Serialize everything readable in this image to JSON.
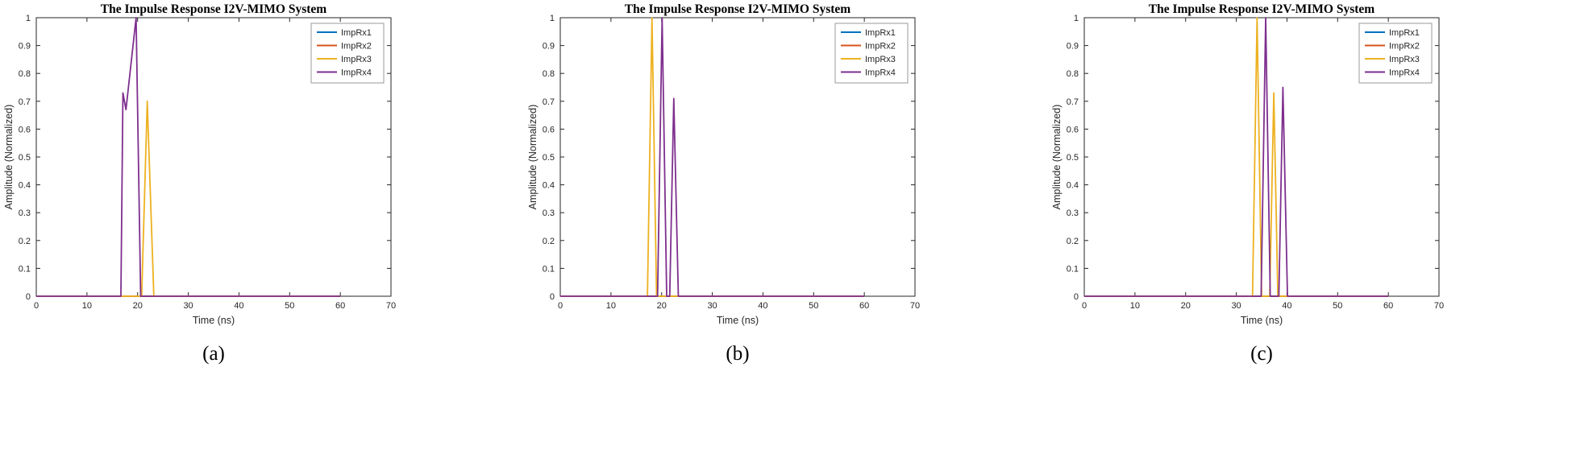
{
  "figure": {
    "title": "The Impulse Response I2V-MIMO System",
    "xlabel": "Time (ns)",
    "ylabel": "Amplitude (Normalized)"
  },
  "colors": {
    "ImpRx1": "#0072BD",
    "ImpRx2": "#D95319",
    "ImpRx3": "#EDB120",
    "ImpRx4": "#7E2F8E",
    "axis": "#262626",
    "legend_border": "#999999"
  },
  "chart_data": [
    {
      "type": "line",
      "title": "The Impulse Response I2V-MIMO System",
      "xlabel": "Time (ns)",
      "ylabel": "Amplitude (Normalized)",
      "sublabel": "(a)",
      "xlim": [
        0,
        70
      ],
      "ylim": [
        0,
        1
      ],
      "xticks": [
        0,
        10,
        20,
        30,
        40,
        50,
        60,
        70
      ],
      "yticks": [
        0,
        0.1,
        0.2,
        0.3,
        0.4,
        0.5,
        0.6,
        0.7,
        0.8,
        0.9,
        1
      ],
      "grid": false,
      "legend_position": "top-right",
      "series": [
        {
          "name": "ImpRx1",
          "color": "#0072BD",
          "points": [
            [
              0,
              0
            ],
            [
              60,
              0
            ]
          ]
        },
        {
          "name": "ImpRx2",
          "color": "#D95319",
          "points": [
            [
              0,
              0
            ],
            [
              60,
              0
            ]
          ]
        },
        {
          "name": "ImpRx3",
          "color": "#EDB120",
          "points": [
            [
              0,
              0
            ],
            [
              20.8,
              0
            ],
            [
              21.9,
              0.7
            ],
            [
              23.2,
              0
            ],
            [
              60,
              0
            ]
          ]
        },
        {
          "name": "ImpRx4",
          "color": "#7E2F8E",
          "points": [
            [
              0,
              0
            ],
            [
              16.7,
              0
            ],
            [
              17.1,
              0.73
            ],
            [
              17.7,
              0.67
            ],
            [
              19.7,
              1
            ],
            [
              20.6,
              0
            ],
            [
              60,
              0
            ]
          ]
        }
      ]
    },
    {
      "type": "line",
      "title": "The Impulse Response I2V-MIMO System",
      "xlabel": "Time (ns)",
      "ylabel": "Amplitude (Normalized)",
      "sublabel": "(b)",
      "xlim": [
        0,
        70
      ],
      "ylim": [
        0,
        1
      ],
      "xticks": [
        0,
        10,
        20,
        30,
        40,
        50,
        60,
        70
      ],
      "yticks": [
        0,
        0.1,
        0.2,
        0.3,
        0.4,
        0.5,
        0.6,
        0.7,
        0.8,
        0.9,
        1
      ],
      "grid": false,
      "legend_position": "top-right",
      "series": [
        {
          "name": "ImpRx1",
          "color": "#0072BD",
          "points": [
            [
              0,
              0
            ],
            [
              60,
              0
            ]
          ]
        },
        {
          "name": "ImpRx2",
          "color": "#D95319",
          "points": [
            [
              0,
              0
            ],
            [
              60,
              0
            ]
          ]
        },
        {
          "name": "ImpRx3",
          "color": "#EDB120",
          "points": [
            [
              0,
              0
            ],
            [
              17.2,
              0
            ],
            [
              18.1,
              1
            ],
            [
              19.0,
              0
            ],
            [
              60,
              0
            ]
          ]
        },
        {
          "name": "ImpRx4",
          "color": "#7E2F8E",
          "points": [
            [
              0,
              0
            ],
            [
              19.2,
              0
            ],
            [
              20.1,
              1
            ],
            [
              21.0,
              0
            ],
            [
              21.6,
              0
            ],
            [
              22.4,
              0.71
            ],
            [
              23.3,
              0
            ],
            [
              60,
              0
            ]
          ]
        }
      ]
    },
    {
      "type": "line",
      "title": "The Impulse Response I2V-MIMO System",
      "xlabel": "Time (ns)",
      "ylabel": "Amplitude (Normalized)",
      "sublabel": "(c)",
      "xlim": [
        0,
        70
      ],
      "ylim": [
        0,
        1
      ],
      "xticks": [
        0,
        10,
        20,
        30,
        40,
        50,
        60,
        70
      ],
      "yticks": [
        0,
        0.1,
        0.2,
        0.3,
        0.4,
        0.5,
        0.6,
        0.7,
        0.8,
        0.9,
        1
      ],
      "grid": false,
      "legend_position": "top-right",
      "series": [
        {
          "name": "ImpRx1",
          "color": "#0072BD",
          "points": [
            [
              0,
              0
            ],
            [
              60,
              0
            ]
          ]
        },
        {
          "name": "ImpRx2",
          "color": "#D95319",
          "points": [
            [
              0,
              0
            ],
            [
              60,
              0
            ]
          ]
        },
        {
          "name": "ImpRx3",
          "color": "#EDB120",
          "points": [
            [
              0,
              0
            ],
            [
              33.2,
              0
            ],
            [
              34.1,
              1
            ],
            [
              35.0,
              0
            ],
            [
              36.6,
              0
            ],
            [
              37.4,
              0.73
            ],
            [
              38.2,
              0
            ],
            [
              60,
              0
            ]
          ]
        },
        {
          "name": "ImpRx4",
          "color": "#7E2F8E",
          "points": [
            [
              0,
              0
            ],
            [
              34.9,
              0
            ],
            [
              35.8,
              1
            ],
            [
              36.7,
              0
            ],
            [
              38.4,
              0
            ],
            [
              39.2,
              0.75
            ],
            [
              40.1,
              0
            ],
            [
              60,
              0
            ]
          ]
        }
      ]
    }
  ],
  "legend": {
    "entries": [
      "ImpRx1",
      "ImpRx2",
      "ImpRx3",
      "ImpRx4"
    ]
  }
}
